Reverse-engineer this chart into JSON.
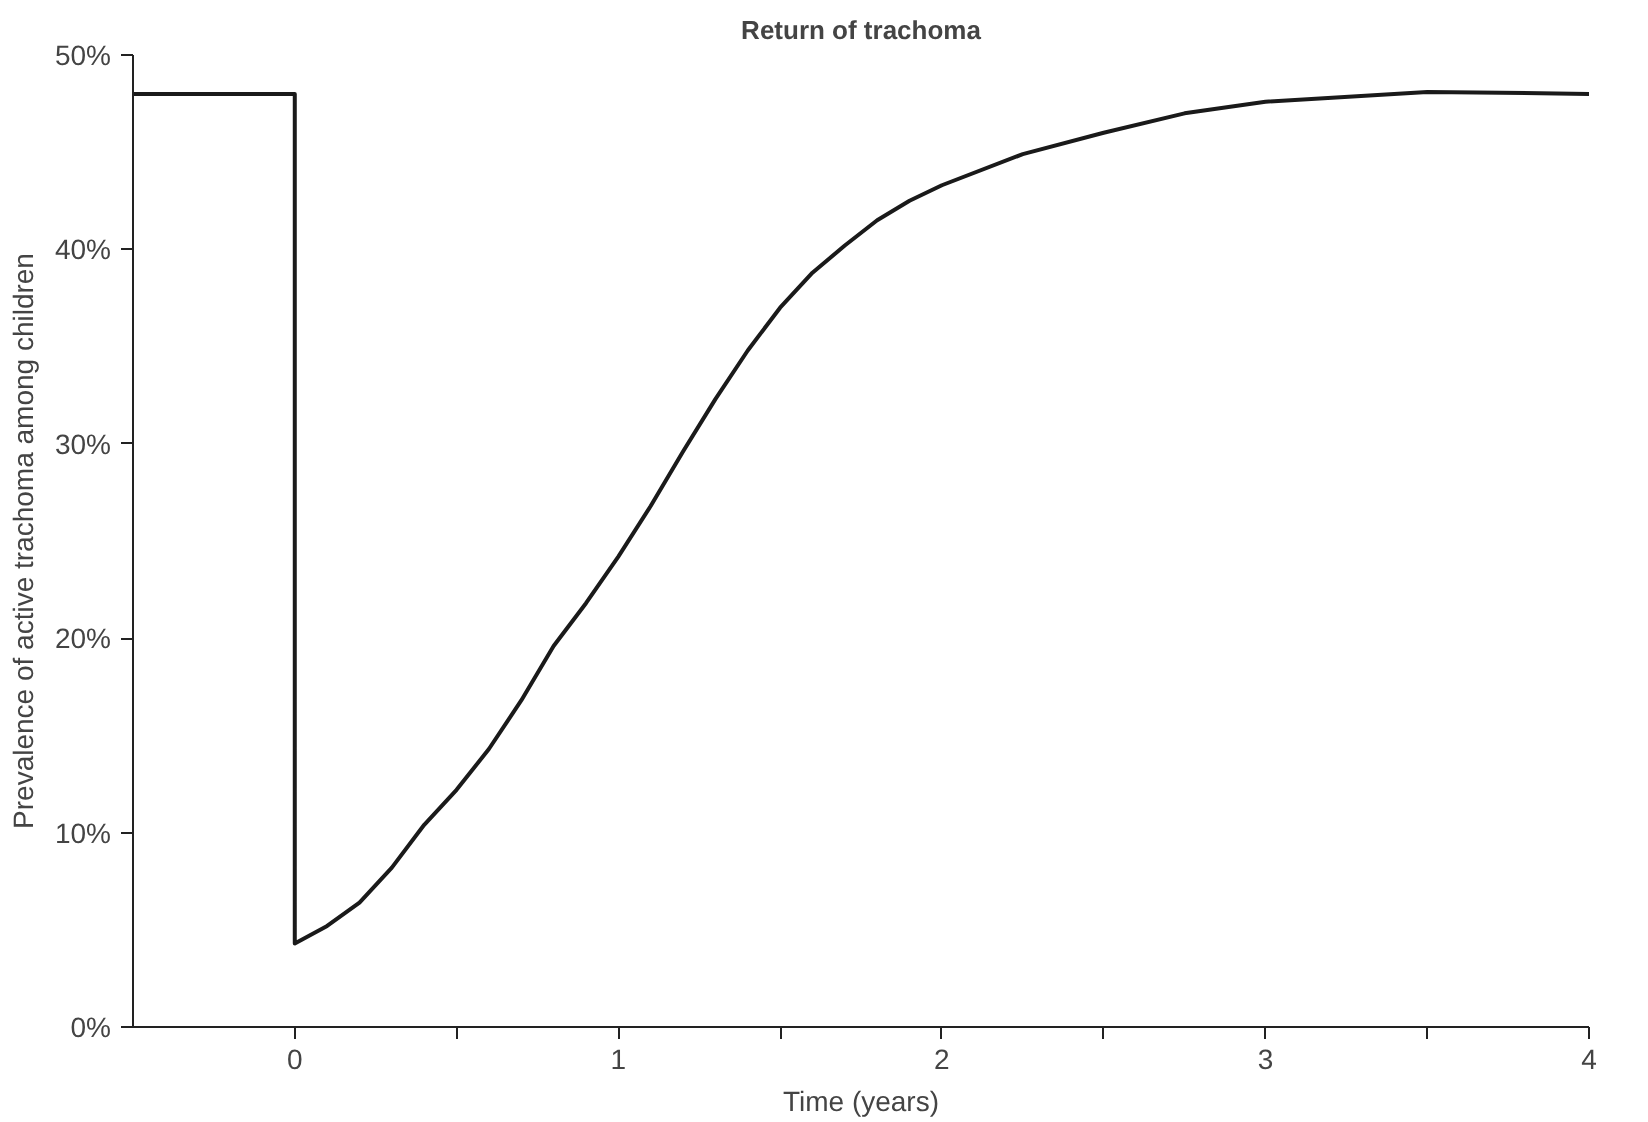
{
  "chart_data": {
    "type": "line",
    "title": "Return of trachoma",
    "xlabel": "Time (years)",
    "ylabel": "Prevalence of active trachoma among children",
    "x": [
      -0.5,
      0,
      0,
      0.1,
      0.2,
      0.3,
      0.4,
      0.5,
      0.6,
      0.7,
      0.8,
      0.9,
      1.0,
      1.1,
      1.2,
      1.3,
      1.4,
      1.5,
      1.6,
      1.7,
      1.8,
      1.9,
      2.0,
      2.25,
      2.5,
      2.75,
      3.0,
      3.5,
      4.0
    ],
    "series": [
      {
        "color": "#1a1a1a",
        "values": [
          48,
          48,
          4.3,
          5.2,
          6.4,
          8.2,
          10.4,
          12.2,
          14.3,
          16.8,
          19.6,
          21.8,
          24.2,
          26.8,
          29.6,
          32.3,
          34.8,
          37.0,
          38.8,
          40.2,
          41.5,
          42.5,
          43.3,
          44.9,
          46.0,
          47.0,
          47.6,
          48.1,
          48.0
        ]
      }
    ],
    "xlim": [
      -0.5,
      4
    ],
    "ylim": [
      0,
      50
    ],
    "xticks": [
      {
        "value": 0,
        "label": "0"
      },
      {
        "value": 0.5,
        "label": null
      },
      {
        "value": 1,
        "label": "1"
      },
      {
        "value": 1.5,
        "label": null
      },
      {
        "value": 2,
        "label": "2"
      },
      {
        "value": 2.5,
        "label": null
      },
      {
        "value": 3,
        "label": "3"
      },
      {
        "value": 3.5,
        "label": null
      },
      {
        "value": 4,
        "label": "4"
      }
    ],
    "yticks": [
      {
        "value": 0,
        "label": "0%"
      },
      {
        "value": 10,
        "label": "10%"
      },
      {
        "value": 20,
        "label": "20%"
      },
      {
        "value": 30,
        "label": "30%"
      },
      {
        "value": 40,
        "label": "40%"
      },
      {
        "value": 50,
        "label": "50%"
      }
    ],
    "grid": false,
    "marker": "none",
    "line_style": "solid"
  }
}
